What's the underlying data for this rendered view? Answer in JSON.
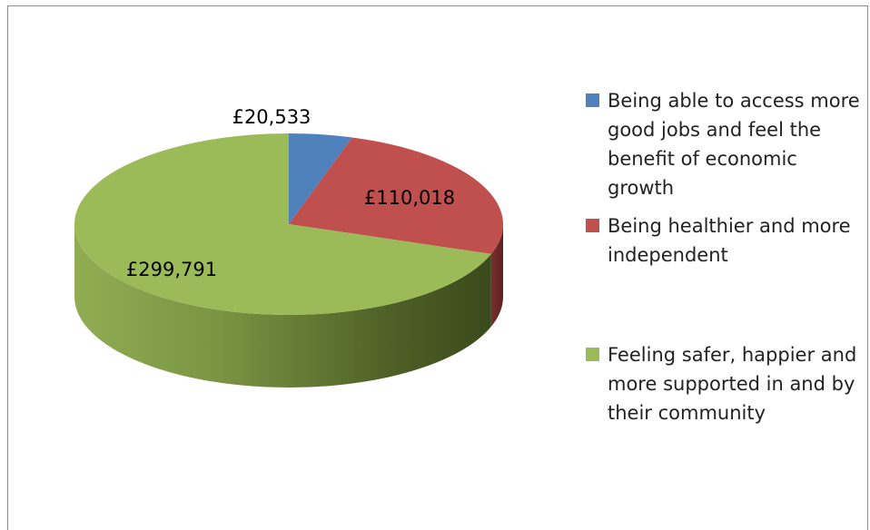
{
  "chart_data": {
    "type": "pie",
    "style": "3d",
    "currency": "£",
    "slices": [
      {
        "label": "Being able to access more good jobs and feel the benefit of economic growth",
        "value": 20533,
        "display": "£20,533",
        "color": "#4f81bd"
      },
      {
        "label": "Being healthier and more independent",
        "value": 110018,
        "display": "£110,018",
        "color": "#c0504d"
      },
      {
        "label": "Feeling safer, happier and more supported in and by their community",
        "value": 299791,
        "display": "£299,791",
        "color": "#9bbb59"
      }
    ],
    "legend_position": "right"
  }
}
